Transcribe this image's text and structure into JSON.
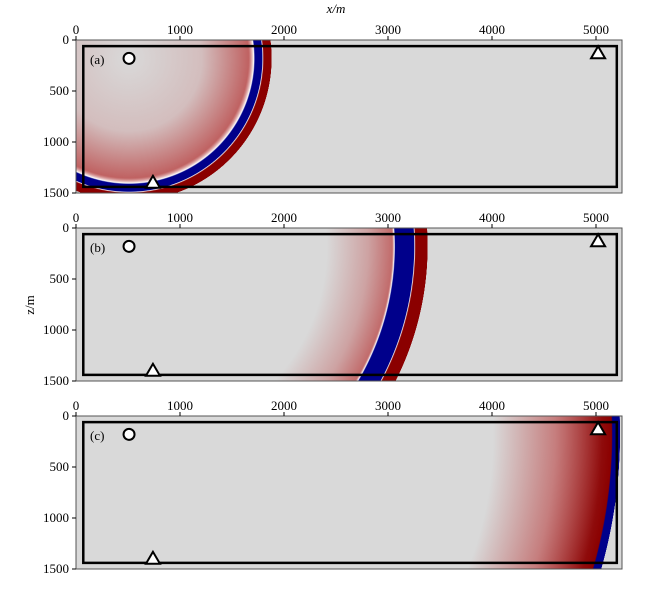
{
  "chart_data": {
    "type": "heatmap",
    "description_units": "meters",
    "xlabel": "x/m",
    "ylabel": "z/m",
    "xlim": [
      0,
      5250
    ],
    "ylim": [
      1500,
      0
    ],
    "x_ticks": [
      0,
      1000,
      2000,
      3000,
      4000,
      5000
    ],
    "y_ticks": [
      0,
      500,
      1000,
      1500
    ],
    "colors": {
      "background": "#d9d9d9",
      "positive": "#b22222",
      "positive_dark": "#8b0000",
      "negative": "#00008b"
    },
    "source": {
      "x": 510,
      "z": 180,
      "symbol": "circle"
    },
    "receivers": [
      {
        "x": 740,
        "z": 1400,
        "symbol": "triangle"
      },
      {
        "x": 5020,
        "z": 130,
        "symbol": "triangle"
      }
    ],
    "inner_box": {
      "x": [
        70,
        5200
      ],
      "z": [
        60,
        1440
      ]
    },
    "panels": [
      {
        "label": "(a)",
        "wavefront_radius_m": 1280
      },
      {
        "label": "(b)",
        "wavefront_radius_m": 2740
      },
      {
        "label": "(c)",
        "wavefront_radius_m": 4650
      }
    ]
  }
}
